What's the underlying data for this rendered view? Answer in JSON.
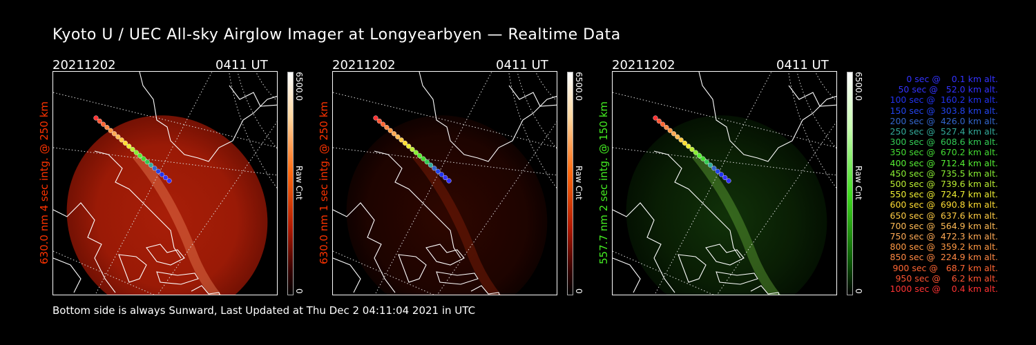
{
  "title": "Kyoto U / UEC All-sky Airglow Imager at Longyearbyen — Realtime Data",
  "panels": [
    {
      "date": "20211202",
      "time": "0411 UT",
      "ylabel": "630.0 nm 4 sec intg. @ 250 km",
      "label_color": "#ff3300",
      "cbar_max": "6500.0",
      "cbar_min": "0",
      "cbar_unit": "Raw Cnt",
      "color_map": "red"
    },
    {
      "date": "20211202",
      "time": "0411 UT",
      "ylabel": "630.0 nm 1 sec intg. @ 250 km",
      "label_color": "#ff3300",
      "cbar_max": "6500.0",
      "cbar_min": "0",
      "cbar_unit": "Raw Cnt",
      "color_map": "red"
    },
    {
      "date": "20211202",
      "time": "0411 UT",
      "ylabel": "557.7 nm 2 sec intg. @ 150 km",
      "label_color": "#44ee22",
      "cbar_max": "6500.0",
      "cbar_min": "0",
      "cbar_unit": "Raw Cnt",
      "color_map": "green"
    }
  ],
  "legend": [
    {
      "text": "   0 sec @    0.1 km alt.",
      "color": "#3333ff"
    },
    {
      "text": "  50 sec @   52.0 km alt.",
      "color": "#3333ff"
    },
    {
      "text": " 100 sec @  160.2 km alt.",
      "color": "#2233ee"
    },
    {
      "text": " 150 sec @  303.8 km alt.",
      "color": "#2244ee"
    },
    {
      "text": " 200 sec @  426.0 km alt.",
      "color": "#3366cc"
    },
    {
      "text": " 250 sec @  527.4 km alt.",
      "color": "#33aa99"
    },
    {
      "text": " 300 sec @  608.6 km alt.",
      "color": "#33cc55"
    },
    {
      "text": " 350 sec @  670.2 km alt.",
      "color": "#44dd33"
    },
    {
      "text": " 400 sec @  712.4 km alt.",
      "color": "#55ee33"
    },
    {
      "text": " 450 sec @  735.5 km alt.",
      "color": "#88ee33"
    },
    {
      "text": " 500 sec @  739.6 km alt.",
      "color": "#bbee33"
    },
    {
      "text": " 550 sec @  724.7 km alt.",
      "color": "#eeee33"
    },
    {
      "text": " 600 sec @  690.8 km alt.",
      "color": "#ffdd33"
    },
    {
      "text": " 650 sec @  637.6 km alt.",
      "color": "#ffcc44"
    },
    {
      "text": " 700 sec @  564.9 km alt.",
      "color": "#ffbb55"
    },
    {
      "text": " 750 sec @  472.3 km alt.",
      "color": "#ffaa55"
    },
    {
      "text": " 800 sec @  359.2 km alt.",
      "color": "#ff9944"
    },
    {
      "text": " 850 sec @  224.9 km alt.",
      "color": "#ff8844"
    },
    {
      "text": " 900 sec @   68.7 km alt.",
      "color": "#ff6633"
    },
    {
      "text": " 950 sec @    6.2 km alt.",
      "color": "#ff5533"
    },
    {
      "text": "1000 sec @    0.4 km alt.",
      "color": "#ff3333"
    }
  ],
  "footer": "Bottom side is always Sunward, Last Updated at Thu Dec  2 04:11:04 2021 in UTC"
}
